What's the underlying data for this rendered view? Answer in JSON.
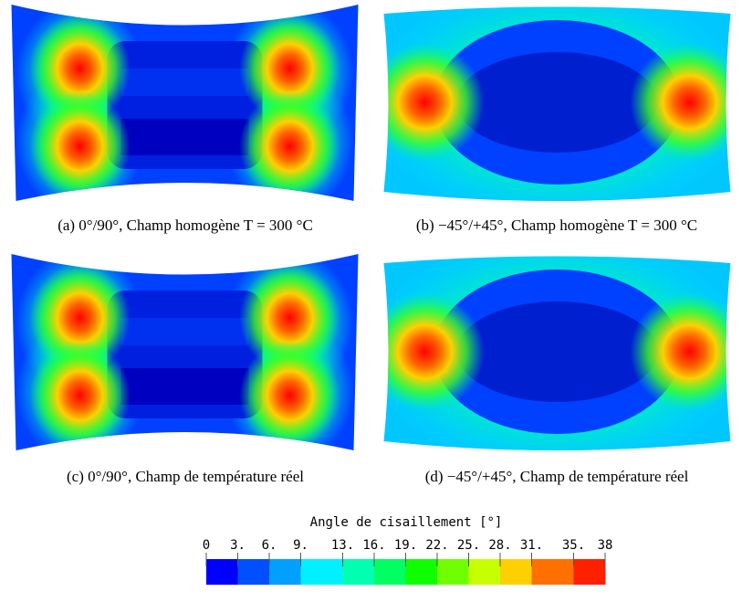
{
  "panels": [
    {
      "caption": "(a) 0°/90°, Champ homogène T = 300 °C"
    },
    {
      "caption": "(b) −45°/+45°, Champ homogène T = 300 °C"
    },
    {
      "caption": "(c) 0°/90°, Champ de température réel"
    },
    {
      "caption": "(d) −45°/+45°, Champ de température réel"
    }
  ],
  "colorbar": {
    "title": "Angle de cisaillement [°]",
    "range": [
      0,
      38
    ],
    "ticks": [
      0,
      {
        "value": 3,
        "label": "3."
      },
      {
        "value": 6,
        "label": "6."
      },
      {
        "value": 9,
        "label": "9."
      },
      {
        "value": 13,
        "label": "13."
      },
      {
        "value": 16,
        "label": "16."
      },
      {
        "value": 19,
        "label": "19."
      },
      {
        "value": 22,
        "label": "22."
      },
      {
        "value": 25,
        "label": "25."
      },
      {
        "value": 28,
        "label": "28."
      },
      {
        "value": 31,
        "label": "31."
      },
      {
        "value": 35,
        "label": "35."
      },
      38
    ],
    "colors": [
      "#0000ff",
      "#0050ff",
      "#00a0ff",
      "#00f0ff",
      "#00ffb0",
      "#00ff60",
      "#10ff00",
      "#70ff00",
      "#c8ff00",
      "#ffd000",
      "#ff7000",
      "#ff2000"
    ]
  }
}
